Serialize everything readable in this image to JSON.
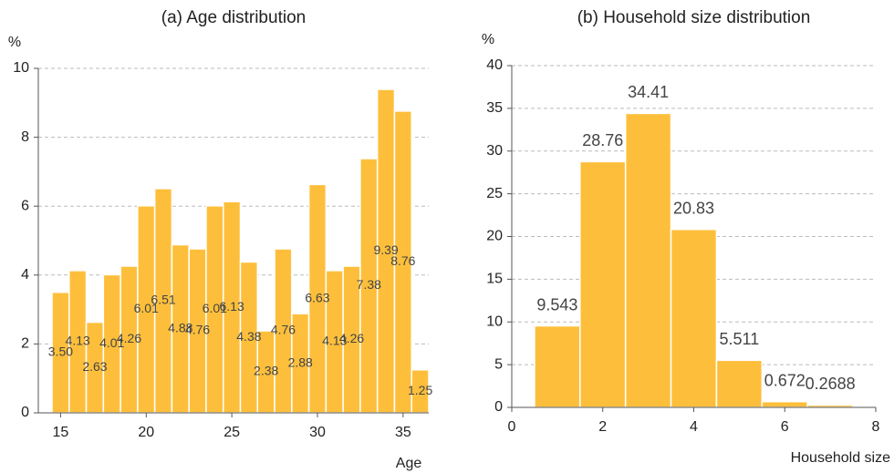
{
  "chart_data": [
    {
      "type": "histogram",
      "title": "(a) Age distribution",
      "y_label": "%",
      "x_label": "Age",
      "bins": [
        14.5,
        15.5,
        16.5,
        17.5,
        18.5,
        19.5,
        20.5,
        21.5,
        22.5,
        23.5,
        24.5,
        25.5,
        26.5,
        27.5,
        28.5,
        29.5,
        30.5,
        31.5,
        32.5,
        33.5,
        34.5,
        35.5,
        36.5
      ],
      "values": [
        3.5,
        4.13,
        2.63,
        4.01,
        4.26,
        6.01,
        6.51,
        4.88,
        4.76,
        6.01,
        6.13,
        4.38,
        2.38,
        4.76,
        2.88,
        6.63,
        4.13,
        4.26,
        7.38,
        9.39,
        8.76,
        1.25
      ],
      "value_labels": [
        "3.50",
        "4.13",
        "2.63",
        "4.01",
        "4.26",
        "6.01",
        "6.51",
        "4.88",
        "4.76",
        "6.01",
        "6.13",
        "4.38",
        "2.38",
        "4.76",
        "2.88",
        "6.63",
        "4.13",
        "4.26",
        "7.38",
        "9.39",
        "8.76",
        "1.25"
      ],
      "color": "#fdbf3b",
      "xlim": [
        13.7,
        36.5
      ],
      "xticks": [
        15,
        20,
        25,
        30,
        35
      ],
      "ylim": [
        0,
        10
      ],
      "yticks": [
        0,
        2,
        4,
        6,
        8,
        10
      ],
      "grid": true
    },
    {
      "type": "histogram",
      "title": "(b) Household size distribution",
      "y_label": "%",
      "x_label": "Household size",
      "bins": [
        0.5,
        1.5,
        2.5,
        3.5,
        4.5,
        5.5,
        6.5,
        7.5
      ],
      "values": [
        9.543,
        28.76,
        34.41,
        20.83,
        5.511,
        0.672,
        0.2688
      ],
      "color": "#fdbf3b",
      "xlim": [
        0,
        8
      ],
      "xticks": [
        0,
        2,
        4,
        6,
        8
      ],
      "ylim": [
        0,
        40
      ],
      "yticks": [
        0,
        5,
        10,
        15,
        20,
        25,
        30,
        35,
        40
      ],
      "grid": true
    }
  ]
}
